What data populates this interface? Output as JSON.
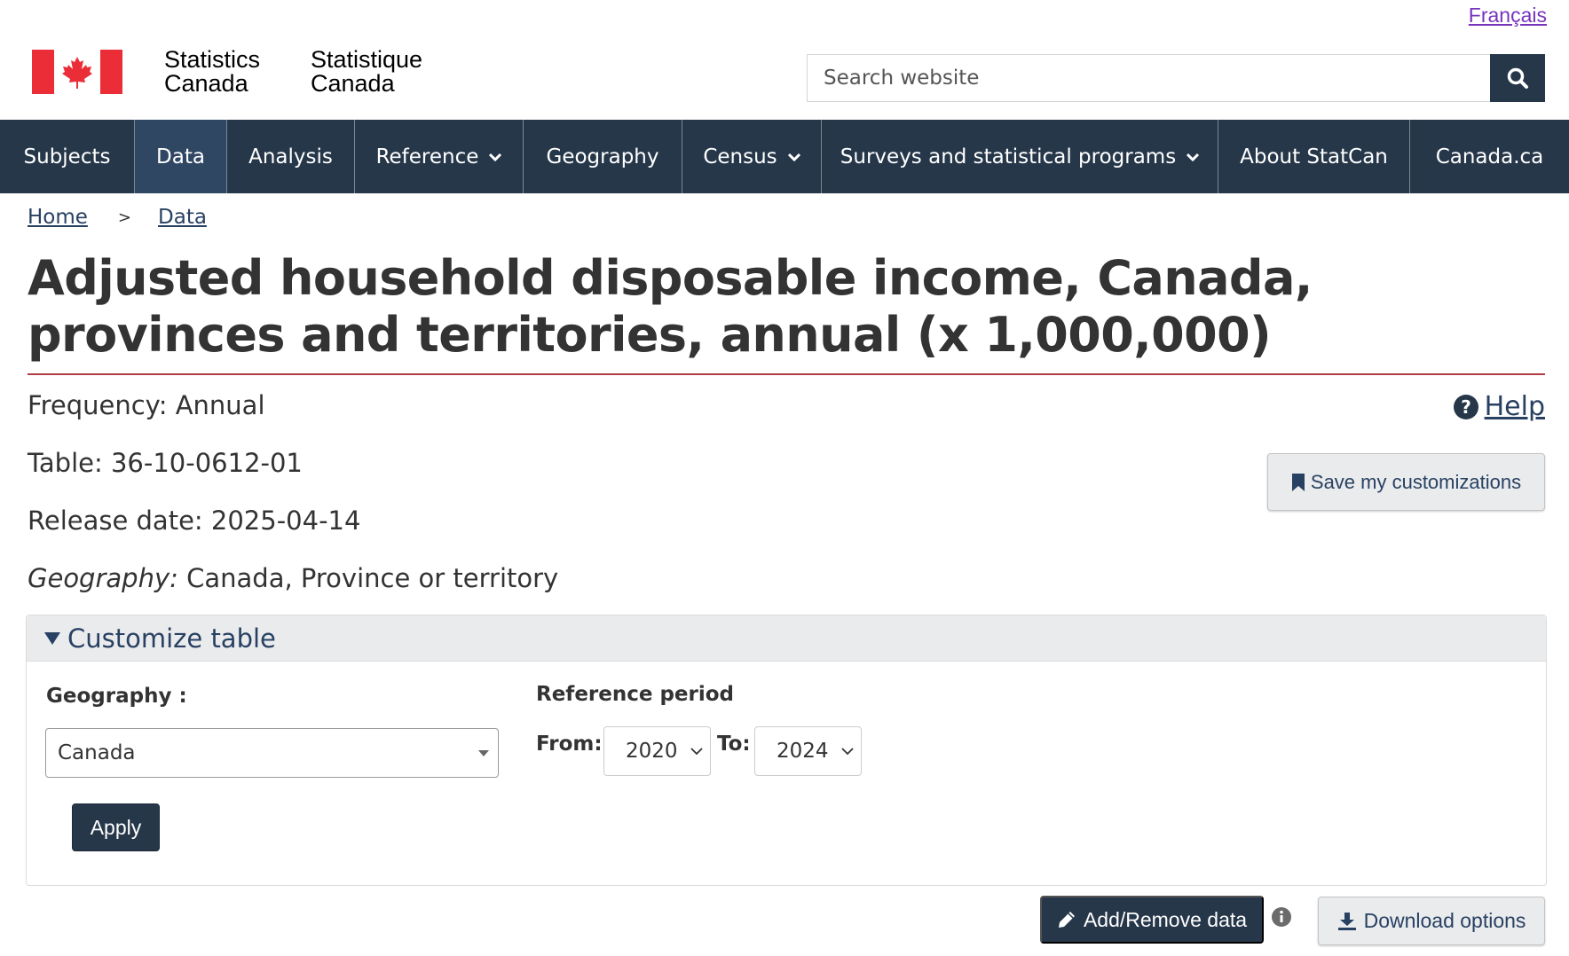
{
  "header": {
    "language_link": "Français",
    "wordmark_en": [
      "Statistics",
      "Canada"
    ],
    "wordmark_fr": [
      "Statistique",
      "Canada"
    ],
    "search_placeholder": "Search website",
    "flag_colors": {
      "red": "#eb2d37",
      "white": "#ffffff"
    }
  },
  "nav": {
    "items": [
      {
        "label": "Subjects",
        "has_menu": false
      },
      {
        "label": "Data",
        "has_menu": false,
        "active": true
      },
      {
        "label": "Analysis",
        "has_menu": false
      },
      {
        "label": "Reference",
        "has_menu": true
      },
      {
        "label": "Geography",
        "has_menu": false
      },
      {
        "label": "Census",
        "has_menu": true
      },
      {
        "label": "Surveys and statistical programs",
        "has_menu": true
      },
      {
        "label": "About StatCan",
        "has_menu": false
      },
      {
        "label": "Canada.ca",
        "has_menu": false
      }
    ]
  },
  "breadcrumb": {
    "items": [
      "Home",
      "Data"
    ],
    "separator": ">"
  },
  "page": {
    "title": "Adjusted household disposable income, Canada, provinces and territories, annual (x 1,000,000)",
    "frequency": "Frequency: Annual",
    "table": "Table: 36-10-0612-01",
    "release_date": "Release date: 2025-04-14",
    "geography_label": "Geography:",
    "geography_value": " Canada, Province or territory",
    "help_label": "Help",
    "save_label": "Save my customizations"
  },
  "customize": {
    "header": "Customize table",
    "geography_label": "Geography :",
    "geography_value": "Canada",
    "reference_period_label": "Reference period",
    "from_label": "From:",
    "from_value": "2020",
    "to_label": "To:",
    "to_value": "2024",
    "apply_label": "Apply"
  },
  "actions": {
    "add_remove_label": "Add/Remove data",
    "download_label": "Download options"
  },
  "colors": {
    "nav_bg": "#26374a",
    "link": "#284162",
    "title_rule": "#af3c43",
    "visited_link": "#7834bc"
  }
}
